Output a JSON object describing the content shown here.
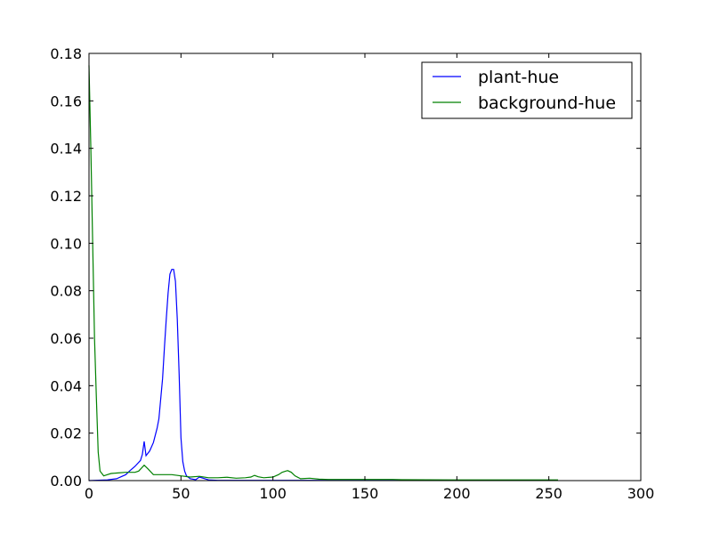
{
  "chart_data": {
    "type": "line",
    "title": "",
    "xlabel": "",
    "ylabel": "",
    "xlim": [
      0,
      300
    ],
    "ylim": [
      0,
      0.18
    ],
    "xticks": [
      0,
      50,
      100,
      150,
      200,
      250,
      300
    ],
    "xtick_labels": [
      "0",
      "50",
      "100",
      "150",
      "200",
      "250",
      "300"
    ],
    "yticks": [
      0,
      0.02,
      0.04,
      0.06,
      0.08,
      0.1,
      0.12,
      0.14,
      0.16,
      0.18
    ],
    "ytick_labels": [
      "0.00",
      "0.02",
      "0.04",
      "0.06",
      "0.08",
      "0.10",
      "0.12",
      "0.14",
      "0.16",
      "0.18"
    ],
    "grid": false,
    "legend_position": "top-right",
    "series": [
      {
        "name": "plant-hue",
        "color": "#0000ff",
        "x": [
          0,
          10,
          15,
          20,
          22,
          25,
          28,
          29,
          30,
          31,
          33,
          35,
          37,
          38,
          40,
          41,
          42,
          43,
          44,
          45,
          46,
          47,
          48,
          49,
          50,
          51,
          52,
          53,
          55,
          58,
          60,
          65,
          70,
          80,
          100,
          150,
          200,
          255
        ],
        "y": [
          0,
          0.0003,
          0.0008,
          0.0025,
          0.004,
          0.006,
          0.0085,
          0.011,
          0.0165,
          0.0105,
          0.0125,
          0.016,
          0.022,
          0.026,
          0.043,
          0.056,
          0.068,
          0.079,
          0.087,
          0.089,
          0.089,
          0.084,
          0.068,
          0.045,
          0.018,
          0.008,
          0.004,
          0.002,
          0.0008,
          0.0004,
          0.0015,
          0.0003,
          0.0001,
          0.0001,
          0.0001,
          0.0001,
          0.0001,
          0.0001
        ]
      },
      {
        "name": "background-hue",
        "color": "#008000",
        "x": [
          0,
          1,
          2,
          3,
          4,
          5,
          6,
          8,
          10,
          12,
          15,
          20,
          25,
          27,
          30,
          32,
          35,
          40,
          45,
          50,
          55,
          60,
          65,
          70,
          75,
          80,
          85,
          88,
          90,
          92,
          95,
          100,
          103,
          105,
          107,
          108,
          110,
          112,
          115,
          120,
          125,
          130,
          150,
          165,
          170,
          200,
          250,
          255
        ],
        "y": [
          0.175,
          0.14,
          0.1,
          0.06,
          0.035,
          0.012,
          0.004,
          0.002,
          0.0025,
          0.003,
          0.0032,
          0.0035,
          0.0035,
          0.004,
          0.0065,
          0.005,
          0.0025,
          0.0025,
          0.0025,
          0.002,
          0.0015,
          0.0018,
          0.0012,
          0.0012,
          0.0014,
          0.001,
          0.0012,
          0.0015,
          0.0022,
          0.0016,
          0.0012,
          0.0015,
          0.0025,
          0.0035,
          0.004,
          0.0042,
          0.0035,
          0.002,
          0.0008,
          0.001,
          0.0006,
          0.0005,
          0.0005,
          0.0005,
          0.0004,
          0.0003,
          0.0003,
          0.0003
        ]
      }
    ]
  }
}
